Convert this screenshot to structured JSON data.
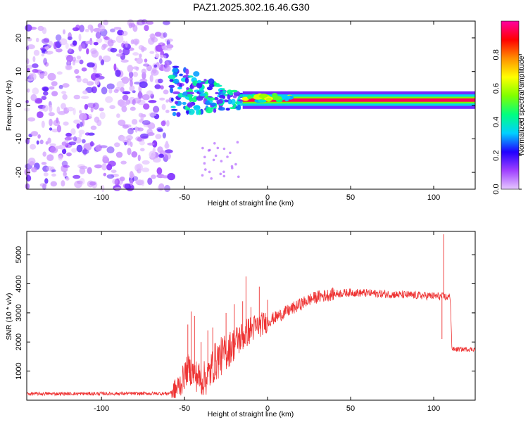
{
  "title": "PAZ1.2025.302.16.46.G30",
  "chart_data": [
    {
      "type": "heatmap",
      "name": "spectrogram",
      "xlabel": "Height of straight line (km)",
      "ylabel": "Frequency (Hz)",
      "xlim": [
        -145,
        125
      ],
      "ylim": [
        -25,
        25
      ],
      "x_ticks": [
        -100,
        -50,
        0,
        50,
        100
      ],
      "y_ticks": [
        -20,
        -10,
        0,
        10,
        20
      ],
      "colorbar": {
        "label": "Normalized spectral amplitude",
        "range": [
          0,
          1
        ],
        "ticks": [
          "0.0",
          "0.2",
          "0.4",
          "0.6",
          "0.8"
        ],
        "tick_values": [
          0.0,
          0.2,
          0.4,
          0.6,
          0.8
        ],
        "colors": [
          "#e6c8ff",
          "#a040ff",
          "#2000ff",
          "#00d0ff",
          "#00ff80",
          "#80ff00",
          "#ffff00",
          "#ff9000",
          "#ff0000",
          "#ff00a0"
        ]
      },
      "features": {
        "noise_region_x": [
          -145,
          -58
        ],
        "noise_freq_range": [
          -25,
          25
        ],
        "transition_region_x": [
          -58,
          -15
        ],
        "transition_band_hz": [
          -10,
          10
        ],
        "carrier_x": [
          -15,
          125
        ],
        "carrier_freq_hz": 1.5,
        "carrier_amplitude": 0.95
      }
    },
    {
      "type": "line",
      "name": "snr",
      "xlabel": "Height of straight line (km)",
      "ylabel": "SNR (10 * v/v)",
      "xlim": [
        -145,
        125
      ],
      "ylim": [
        0,
        5800
      ],
      "x_ticks": [
        -100,
        -50,
        0,
        50,
        100
      ],
      "y_ticks": [
        1000,
        2000,
        3000,
        4000,
        5000
      ],
      "color": "#ee3333",
      "profile_x": [
        -145,
        -60,
        -56,
        -52,
        -48,
        -44,
        -40,
        -36,
        -32,
        -28,
        -24,
        -20,
        -16,
        -12,
        -8,
        -4,
        0,
        5,
        10,
        15,
        20,
        25,
        30,
        35,
        40,
        50,
        60,
        70,
        80,
        90,
        100,
        105,
        106,
        110,
        111,
        125
      ],
      "profile_y": [
        220,
        230,
        300,
        600,
        1100,
        900,
        700,
        800,
        1300,
        1500,
        1700,
        1950,
        2150,
        2350,
        2500,
        2600,
        2700,
        2850,
        3000,
        3150,
        3300,
        3450,
        3550,
        3600,
        3650,
        3700,
        3680,
        3650,
        3620,
        3600,
        3580,
        3560,
        3550,
        3540,
        1750,
        1750
      ],
      "spikes": [
        {
          "x": -48,
          "y": 2600
        },
        {
          "x": -46,
          "y": 3050
        },
        {
          "x": -44,
          "y": 2900
        },
        {
          "x": -40,
          "y": 2000
        },
        {
          "x": -36,
          "y": 2400
        },
        {
          "x": -33,
          "y": 2500
        },
        {
          "x": -25,
          "y": 3000
        },
        {
          "x": -20,
          "y": 3300
        },
        {
          "x": -15,
          "y": 3400
        },
        {
          "x": -13,
          "y": 4250
        },
        {
          "x": -10,
          "y": 3200
        },
        {
          "x": -5,
          "y": 3900
        },
        {
          "x": 0,
          "y": 3450
        },
        {
          "x": 106,
          "y": 5700
        },
        {
          "x": 105,
          "y": 2100
        }
      ]
    }
  ]
}
